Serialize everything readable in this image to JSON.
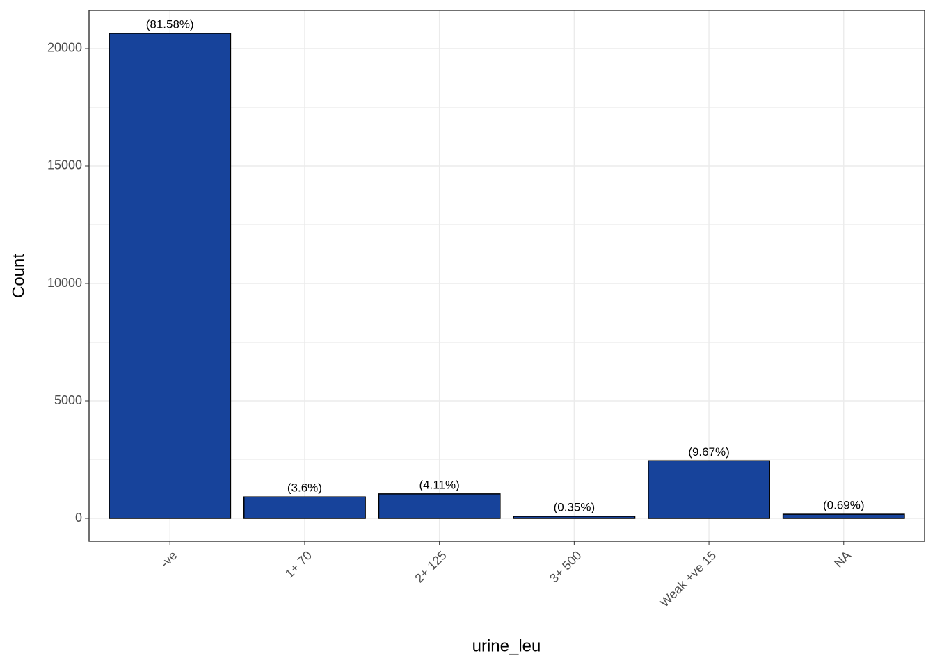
{
  "chart_data": {
    "type": "bar",
    "x_label": "urine_leu",
    "y_label": "Count",
    "categories": [
      "-ve",
      "1+ 70",
      "2+ 125",
      "3+ 500",
      "Weak +ve 15",
      "NA"
    ],
    "values": [
      20651,
      911,
      1040,
      89,
      2448,
      175
    ],
    "annotations": [
      "(81.58%)",
      "(3.6%)",
      "(4.11%)",
      "(0.35%)",
      "(9.67%)",
      "(0.69%)"
    ],
    "color": "#17439b",
    "ylim": [
      -976,
      21627
    ],
    "yticks": [
      0,
      5000,
      10000,
      15000,
      20000
    ],
    "grid": true
  }
}
